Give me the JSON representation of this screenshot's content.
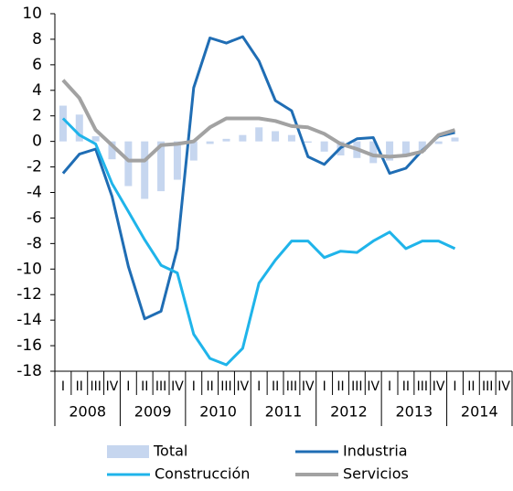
{
  "chart_data": {
    "type": "line",
    "categories": [
      "I",
      "II",
      "III",
      "IV",
      "I",
      "II",
      "III",
      "IV",
      "I",
      "II",
      "III",
      "IV",
      "I",
      "II",
      "III",
      "IV",
      "I",
      "II",
      "III",
      "IV",
      "I",
      "II",
      "III",
      "IV",
      "I",
      "II",
      "III",
      "IV"
    ],
    "year_groups": [
      "2008",
      "2009",
      "2010",
      "2011",
      "2012",
      "2013",
      "2014"
    ],
    "ylim": [
      -18,
      10
    ],
    "yticks": [
      -18,
      -16,
      -14,
      -12,
      -10,
      -8,
      -6,
      -4,
      -2,
      0,
      2,
      4,
      6,
      8,
      10
    ],
    "series": [
      {
        "name": "Total",
        "type": "bar",
        "color": "#c6d6ef",
        "values": [
          2.8,
          2.1,
          0.4,
          -1.4,
          -3.5,
          -4.5,
          -3.9,
          -3.0,
          -1.5,
          -0.2,
          0.2,
          0.5,
          1.1,
          0.8,
          0.5,
          -0.1,
          -0.8,
          -1.1,
          -1.3,
          -1.7,
          -1.5,
          -1.2,
          -0.8,
          -0.2,
          0.3,
          null,
          null,
          null
        ]
      },
      {
        "name": "Industria",
        "type": "line",
        "color": "#1f6db4",
        "values": [
          -2.5,
          -1.0,
          -0.6,
          -4.3,
          -9.8,
          -13.9,
          -13.3,
          -8.4,
          4.2,
          8.1,
          7.7,
          8.2,
          6.3,
          3.2,
          2.4,
          -1.2,
          -1.8,
          -0.5,
          0.2,
          0.3,
          -2.5,
          -2.1,
          -0.7,
          0.4,
          0.7,
          null,
          null,
          null
        ]
      },
      {
        "name": "Construcción",
        "type": "line",
        "color": "#1fb4ea",
        "values": [
          1.8,
          0.5,
          -0.2,
          -3.3,
          -5.5,
          -7.7,
          -9.7,
          -10.3,
          -15.1,
          -17.0,
          -17.5,
          -16.2,
          -11.1,
          -9.3,
          -7.8,
          -7.8,
          -9.1,
          -8.6,
          -8.7,
          -7.8,
          -7.1,
          -8.4,
          -7.8,
          -7.8,
          -8.4,
          null,
          null,
          null
        ]
      },
      {
        "name": "Servicios",
        "type": "line",
        "color": "#a2a2a2",
        "values": [
          4.8,
          3.4,
          0.9,
          -0.3,
          -1.5,
          -1.5,
          -0.3,
          -0.2,
          0.0,
          1.1,
          1.8,
          1.8,
          1.8,
          1.6,
          1.2,
          1.1,
          0.6,
          -0.2,
          -0.6,
          -1.1,
          -1.2,
          -1.1,
          -0.8,
          0.5,
          0.9,
          null,
          null,
          null
        ]
      }
    ]
  }
}
